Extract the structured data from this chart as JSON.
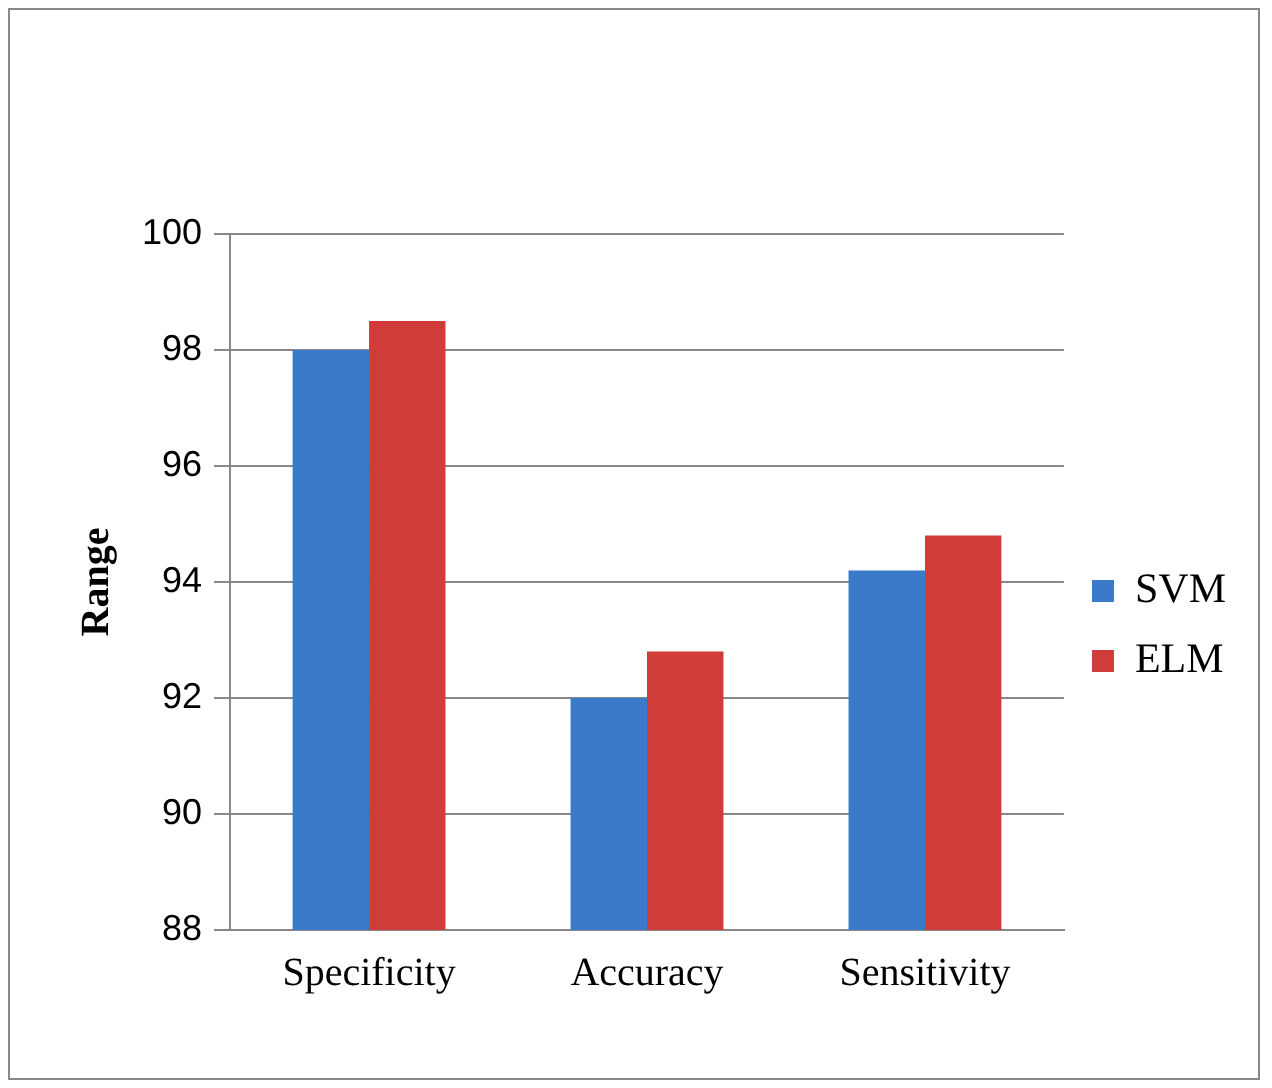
{
  "chart_data": {
    "type": "bar",
    "ylabel": "Range",
    "categories": [
      "Specificity",
      "Accuracy",
      "Sensitivity"
    ],
    "series": [
      {
        "name": "SVM",
        "color": "#3b79c9",
        "values": [
          98.0,
          92.0,
          94.2
        ]
      },
      {
        "name": "ELM",
        "color": "#cf3c3a",
        "values": [
          98.5,
          92.8,
          94.8
        ]
      }
    ],
    "ylim": [
      88,
      100
    ],
    "yticks": [
      88,
      90,
      92,
      94,
      96,
      98,
      100
    ],
    "grid": "y",
    "legend": "right"
  }
}
